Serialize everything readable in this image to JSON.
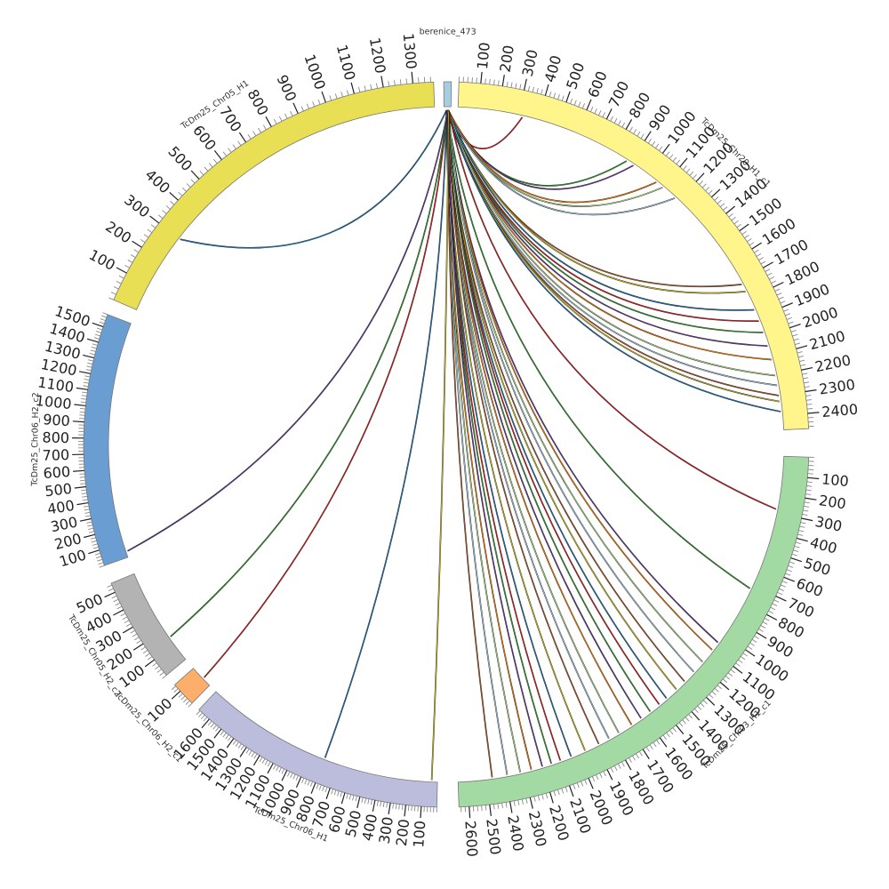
{
  "chart_data": {
    "type": "chord",
    "segments": [
      {
        "id": "berenice",
        "label": "berenice_473",
        "length": 60,
        "color": "#a6cee3"
      },
      {
        "id": "chr20",
        "label": "TcDm25_Chr20_H1_c1",
        "length": 2470,
        "color": "#fff58a"
      },
      {
        "id": "chr03",
        "label": "TcDm25_Chr03_H1_c1",
        "length": 2650,
        "color": "#a3d9a3"
      },
      {
        "id": "chr06h1",
        "label": "TcDm25_Chr06_H1",
        "length": 1690,
        "color": "#bcbddc"
      },
      {
        "id": "chr06h2c1",
        "label": "TcDm25_Chr06_H2_c1",
        "length": 150,
        "color": "#fdae6b"
      },
      {
        "id": "chr05h2",
        "label": "TcDm25_Chr05_H2_c2",
        "length": 550,
        "color": "#b3b3b3"
      },
      {
        "id": "chr06h2c2",
        "label": "TcDm25_Chr06_H2_c2",
        "length": 1580,
        "color": "#6a9ed3"
      },
      {
        "id": "chr05h1",
        "label": "TcDm25_Chr05_H1",
        "length": 1370,
        "color": "#e8df54"
      }
    ],
    "links": [
      {
        "to": "chr05h1",
        "pos": 300
      },
      {
        "to": "chr20",
        "pos": 320
      },
      {
        "to": "chr20",
        "pos": 880
      },
      {
        "to": "chr20",
        "pos": 920
      },
      {
        "to": "chr20",
        "pos": 1060
      },
      {
        "to": "chr20",
        "pos": 1100
      },
      {
        "to": "chr20",
        "pos": 1180
      },
      {
        "to": "chr20",
        "pos": 1720
      },
      {
        "to": "chr20",
        "pos": 1760
      },
      {
        "to": "chr20",
        "pos": 1860
      },
      {
        "to": "chr20",
        "pos": 1920
      },
      {
        "to": "chr20",
        "pos": 1980
      },
      {
        "to": "chr20",
        "pos": 2050
      },
      {
        "to": "chr20",
        "pos": 2120
      },
      {
        "to": "chr20",
        "pos": 2200
      },
      {
        "to": "chr20",
        "pos": 2250
      },
      {
        "to": "chr20",
        "pos": 2300
      },
      {
        "to": "chr20",
        "pos": 2330
      },
      {
        "to": "chr20",
        "pos": 2380
      },
      {
        "to": "chr03",
        "pos": 280
      },
      {
        "to": "chr03",
        "pos": 720
      },
      {
        "to": "chr03",
        "pos": 1050
      },
      {
        "to": "chr03",
        "pos": 1100
      },
      {
        "to": "chr03",
        "pos": 1180
      },
      {
        "to": "chr03",
        "pos": 1250
      },
      {
        "to": "chr03",
        "pos": 1320
      },
      {
        "to": "chr03",
        "pos": 1380
      },
      {
        "to": "chr03",
        "pos": 1450
      },
      {
        "to": "chr03",
        "pos": 1500
      },
      {
        "to": "chr03",
        "pos": 1560
      },
      {
        "to": "chr03",
        "pos": 1620
      },
      {
        "to": "chr03",
        "pos": 1680
      },
      {
        "to": "chr03",
        "pos": 1760
      },
      {
        "to": "chr03",
        "pos": 1820
      },
      {
        "to": "chr03",
        "pos": 1880
      },
      {
        "to": "chr03",
        "pos": 1960
      },
      {
        "to": "chr03",
        "pos": 2040
      },
      {
        "to": "chr03",
        "pos": 2100
      },
      {
        "to": "chr03",
        "pos": 2150
      },
      {
        "to": "chr03",
        "pos": 2200
      },
      {
        "to": "chr03",
        "pos": 2260
      },
      {
        "to": "chr03",
        "pos": 2320
      },
      {
        "to": "chr03",
        "pos": 2390
      },
      {
        "to": "chr03",
        "pos": 2470
      },
      {
        "to": "chr06h1",
        "pos": 40
      },
      {
        "to": "chr06h1",
        "pos": 800
      },
      {
        "to": "chr06h2c1",
        "pos": 60
      },
      {
        "to": "chr05h2",
        "pos": 150
      },
      {
        "to": "chr06h2c2",
        "pos": 40
      }
    ],
    "link_colors": [
      "#1f78b4",
      "#e31a1c",
      "#33a02c",
      "#6a3d9a",
      "#ff7f00",
      "#b2df8a",
      "#a6cee3",
      "#b15928",
      "#d4c21a"
    ]
  }
}
